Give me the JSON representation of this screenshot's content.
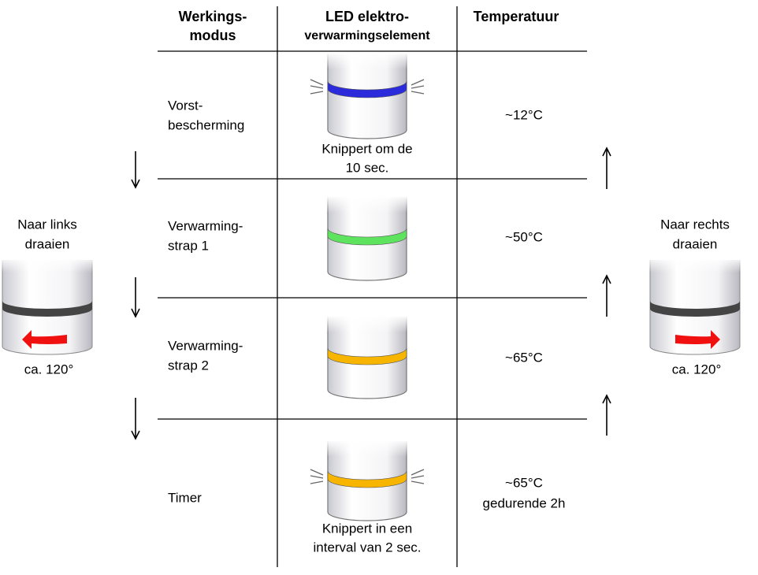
{
  "header": {
    "mode": [
      "Werkings-",
      "modus"
    ],
    "led": [
      "LED elektro-",
      "verwarmingselement"
    ],
    "temperature": "Temperatuur"
  },
  "rows": [
    {
      "mode": [
        "Vorst-",
        "bescherming"
      ],
      "temperature": [
        "~12°C"
      ],
      "caption": [
        "Knippert om de",
        "10 sec."
      ],
      "led_color": "#2b2bdc",
      "blinking": true
    },
    {
      "mode": [
        "Verwarming-",
        "strap 1"
      ],
      "temperature": [
        "~50°C"
      ],
      "caption": [],
      "led_color": "#5ee35e",
      "blinking": false
    },
    {
      "mode": [
        "Verwarming-",
        "strap 2"
      ],
      "temperature": [
        "~65°C"
      ],
      "caption": [],
      "led_color": "#f7b500",
      "blinking": false
    },
    {
      "mode": [
        "Timer"
      ],
      "temperature": [
        "~65°C",
        "gedurende 2h"
      ],
      "caption": [
        "Knippert in een",
        "interval van 2 sec."
      ],
      "led_color": "#f7b500",
      "blinking": true
    }
  ],
  "left": {
    "label": [
      "Naar links",
      "draaien"
    ],
    "angle": "ca. 120°"
  },
  "right": {
    "label": [
      "Naar rechts",
      "draaien"
    ],
    "angle": "ca. 120°"
  }
}
